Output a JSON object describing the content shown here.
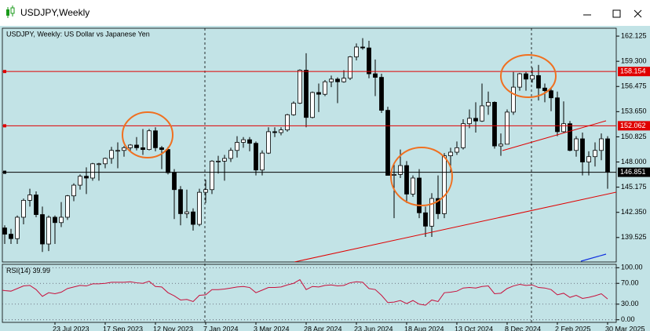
{
  "chart_data": {
    "type": "candlestick",
    "title": "USDJPY,Weekly",
    "subtitle": "USDJPY, Weekly:  US Dollar vs Japanese Yen",
    "categories": [
      null,
      null,
      null,
      null,
      null,
      null,
      null,
      null,
      null,
      "23 Jul 2023",
      null,
      null,
      null,
      null,
      null,
      null,
      null,
      "17 Sep 2023",
      null,
      null,
      null,
      null,
      null,
      null,
      null,
      "12 Nov 2023",
      null,
      null,
      null,
      null,
      null,
      null,
      null,
      "7 Jan 2024",
      null,
      null,
      null,
      null,
      null,
      null,
      null,
      "3 Mar 2024",
      null,
      null,
      null,
      null,
      null,
      null,
      null,
      "28 Apr 2024",
      null,
      null,
      null,
      null,
      null,
      null,
      null,
      "23 Jun 2024",
      null,
      null,
      null,
      null,
      null,
      null,
      null,
      "18 Aug 2024",
      null,
      null,
      null,
      null,
      null,
      null,
      null,
      "13 Oct 2024",
      null,
      null,
      null,
      null,
      null,
      null,
      null,
      "8 Dec 2024",
      null,
      null,
      null,
      null,
      null,
      null,
      null,
      "2 Feb 2025",
      null,
      null,
      null,
      null,
      null,
      null,
      null,
      "30 Mar 2025"
    ],
    "open": [
      138.0,
      140.6,
      139.9,
      139.4,
      141.8,
      143.7,
      144.3,
      142.1,
      138.8,
      141.8,
      141.2,
      141.8,
      144.2,
      145.4,
      146.4,
      146.2,
      147.8,
      147.8,
      148.4,
      149.3,
      149.3,
      149.6,
      149.9,
      149.6,
      149.4,
      151.5,
      149.6,
      149.4,
      146.8,
      144.9,
      142.2,
      142.4,
      141.0,
      144.6,
      144.9,
      148.1,
      148.1,
      148.4,
      149.3,
      150.2,
      150.5,
      150.1,
      147.1,
      149.0,
      151.4,
      151.3,
      151.6,
      153.3,
      154.6,
      158.3,
      153.0,
      155.8,
      155.6,
      157.0,
      157.3,
      157.0,
      157.4,
      159.8,
      160.9,
      160.8,
      157.9,
      157.5,
      153.8,
      146.5,
      146.6,
      147.6,
      144.4,
      146.2,
      142.3,
      140.8,
      143.9,
      142.2,
      148.7,
      149.1,
      149.6,
      152.3,
      152.9,
      152.6,
      154.3,
      154.7,
      149.8,
      150.0,
      153.6,
      156.4,
      157.9,
      157.3,
      157.7,
      156.3,
      156.0,
      155.2,
      151.4,
      152.3,
      149.3,
      150.6,
      148.0,
      148.6,
      149.3,
      150.6
    ],
    "high": [
      141.0,
      140.9,
      140.5,
      142.0,
      143.9,
      145.0,
      144.7,
      143.0,
      142.0,
      142.0,
      143.5,
      144.3,
      145.6,
      146.6,
      147.4,
      147.9,
      147.9,
      148.5,
      149.7,
      150.2,
      149.8,
      150.0,
      150.8,
      151.7,
      151.7,
      151.9,
      149.8,
      149.7,
      147.2,
      145.3,
      144.9,
      142.8,
      145.0,
      146.0,
      148.2,
      148.7,
      148.8,
      149.6,
      150.9,
      150.8,
      150.8,
      150.3,
      149.3,
      151.9,
      151.9,
      151.9,
      153.4,
      154.8,
      158.4,
      160.2,
      155.9,
      156.8,
      157.2,
      157.7,
      157.5,
      158.3,
      159.9,
      161.3,
      161.9,
      161.6,
      159.5,
      157.9,
      154.2,
      147.9,
      149.4,
      148.1,
      146.5,
      147.2,
      143.0,
      144.5,
      146.5,
      149.0,
      149.6,
      150.3,
      152.8,
      153.9,
      154.7,
      156.8,
      155.9,
      154.8,
      151.2,
      153.9,
      158.1,
      158.0,
      158.1,
      158.6,
      158.9,
      156.8,
      156.3,
      155.9,
      154.8,
      152.6,
      150.9,
      151.3,
      149.2,
      150.2,
      151.2,
      150.9
    ],
    "low": [
      137.4,
      138.8,
      138.8,
      138.8,
      141.0,
      143.0,
      141.8,
      137.9,
      138.0,
      138.8,
      140.7,
      141.5,
      143.6,
      144.9,
      144.4,
      145.9,
      145.9,
      147.3,
      147.8,
      147.3,
      148.6,
      149.1,
      149.3,
      148.8,
      149.3,
      149.2,
      147.2,
      146.6,
      141.6,
      140.9,
      141.7,
      140.3,
      140.8,
      143.4,
      144.4,
      146.7,
      145.9,
      148.0,
      148.5,
      149.6,
      149.2,
      146.5,
      146.5,
      148.9,
      150.8,
      151.0,
      151.4,
      153.2,
      154.5,
      151.9,
      152.9,
      153.6,
      155.4,
      156.4,
      154.6,
      156.9,
      157.2,
      159.4,
      160.6,
      157.4,
      155.4,
      153.5,
      146.5,
      141.7,
      146.2,
      143.4,
      144.1,
      141.7,
      139.6,
      139.6,
      141.6,
      141.7,
      146.9,
      148.8,
      149.4,
      151.8,
      151.3,
      152.5,
      153.3,
      149.5,
      148.7,
      150.0,
      153.3,
      156.0,
      156.0,
      156.9,
      154.9,
      154.7,
      153.7,
      150.9,
      151.3,
      149.2,
      148.6,
      146.5,
      146.5,
      147.5,
      148.2,
      145.0
    ],
    "close": [
      140.6,
      139.9,
      139.4,
      141.8,
      143.7,
      144.3,
      142.1,
      138.8,
      141.8,
      141.2,
      141.8,
      144.2,
      145.4,
      146.4,
      146.2,
      147.8,
      147.8,
      148.4,
      149.3,
      149.3,
      149.6,
      149.9,
      149.6,
      149.4,
      151.5,
      149.6,
      149.4,
      146.8,
      144.9,
      142.2,
      142.4,
      141.0,
      144.6,
      144.9,
      148.1,
      148.1,
      148.4,
      149.3,
      150.2,
      150.5,
      150.1,
      147.1,
      149.0,
      151.4,
      151.3,
      151.6,
      153.3,
      154.6,
      158.3,
      153.0,
      155.8,
      155.6,
      157.0,
      157.3,
      157.0,
      157.4,
      159.8,
      160.9,
      160.8,
      157.9,
      157.5,
      153.8,
      146.5,
      146.6,
      147.6,
      144.4,
      146.2,
      142.3,
      140.8,
      143.9,
      142.2,
      148.7,
      149.1,
      149.6,
      152.3,
      152.9,
      152.6,
      154.3,
      154.7,
      149.8,
      150.0,
      153.6,
      156.4,
      157.9,
      157.3,
      157.7,
      156.3,
      156.0,
      155.2,
      151.4,
      152.3,
      149.3,
      150.6,
      148.0,
      148.6,
      149.3,
      150.6,
      146.9
    ],
    "up_color": "#ffffff",
    "down_color": "#000000",
    "ylim": [
      136.78,
      163.01
    ],
    "yticks": [
      162.125,
      {
        "value": 159.3,
        "label": "159.300"
      },
      156.475,
      {
        "value": 153.65,
        "label": "153.650"
      },
      150.825,
      {
        "value": 148.0,
        "label": "148.000"
      },
      145.175,
      {
        "value": 142.35,
        "label": "142.350"
      },
      139.525
    ],
    "levels": [
      {
        "value": 158.154,
        "color": "#e00000"
      },
      {
        "value": 152.062,
        "color": "#e00000"
      },
      {
        "value": 146.851,
        "color": "#000000"
      }
    ],
    "rsi": {
      "label": "RSI(14)",
      "color": "#c8103c",
      "values": [
        58,
        56,
        55,
        60,
        65,
        66,
        58,
        45,
        52,
        50,
        53,
        60,
        63,
        66,
        65,
        69,
        69,
        70,
        72,
        72,
        72,
        73,
        71,
        70,
        74,
        64,
        63,
        52,
        46,
        38,
        39,
        35,
        47,
        48,
        58,
        58,
        59,
        61,
        63,
        64,
        62,
        52,
        57,
        62,
        62,
        63,
        67,
        70,
        77,
        58,
        64,
        63,
        66,
        67,
        65,
        66,
        71,
        73,
        72,
        60,
        58,
        47,
        33,
        34,
        37,
        31,
        37,
        30,
        28,
        38,
        35,
        52,
        53,
        55,
        61,
        62,
        61,
        64,
        65,
        50,
        51,
        60,
        65,
        68,
        66,
        67,
        62,
        61,
        58,
        48,
        51,
        43,
        47,
        41,
        43,
        46,
        50,
        39.99
      ],
      "ylim": [
        -5,
        105
      ],
      "yticks": [
        {
          "value": 100,
          "label": "100.00"
        },
        {
          "value": 70,
          "label": "70.00"
        },
        {
          "value": 30,
          "label": "30.00"
        },
        {
          "value": 0,
          "label": "0.00"
        }
      ]
    }
  }
}
